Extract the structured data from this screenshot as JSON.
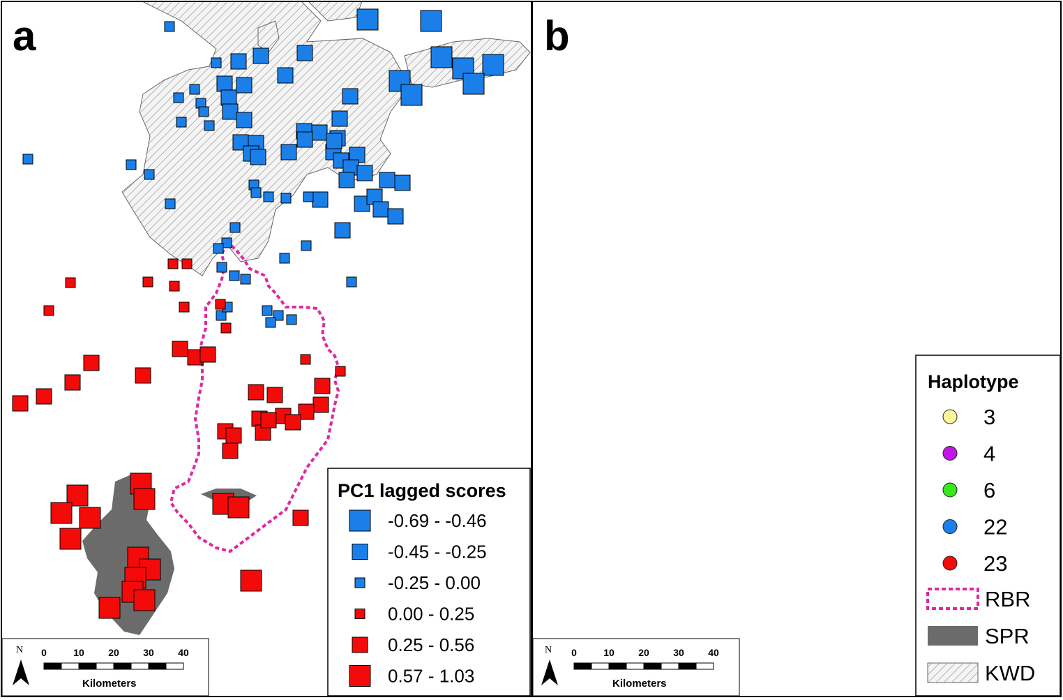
{
  "panels": {
    "a": {
      "letter": "a",
      "legend": {
        "title": "PC1 lagged scores",
        "classes": [
          {
            "label": "-0.69 - -0.46",
            "color": "#1a7fe8",
            "level": 6
          },
          {
            "label": "-0.45 - -0.25",
            "color": "#1a7fe8",
            "level": 5
          },
          {
            "label": "-0.25 - 0.00",
            "color": "#1a7fe8",
            "level": 4
          },
          {
            "label": "0.00 - 0.25",
            "color": "#f50a0a",
            "level": 4
          },
          {
            "label": "0.25 - 0.56",
            "color": "#f50a0a",
            "level": 5
          },
          {
            "label": "0.57 - 1.03",
            "color": "#f50a0a",
            "level": 6
          }
        ]
      }
    },
    "b": {
      "letter": "b",
      "legend": {
        "title": "Haplotype",
        "haplotypes": [
          {
            "label": "3",
            "color": "#fbf59a"
          },
          {
            "label": "4",
            "color": "#c214e6"
          },
          {
            "label": "6",
            "color": "#38e81c"
          },
          {
            "label": "22",
            "color": "#1a7fe8"
          },
          {
            "label": "23",
            "color": "#f50a0a"
          }
        ],
        "areas": [
          {
            "label": "RBR",
            "style": "dashed-magenta"
          },
          {
            "label": "SPR",
            "style": "solid-gray"
          },
          {
            "label": "KWD",
            "style": "hatched"
          }
        ]
      }
    }
  },
  "scale_bar": {
    "ticks": [
      "0",
      "10",
      "20",
      "30",
      "40"
    ],
    "unit": "Kilometers",
    "north": "N"
  },
  "colors": {
    "blue": "#1a7fe8",
    "red": "#f50a0a",
    "rbr_border": "#e0289e",
    "spr_fill": "#6b6b6b"
  }
}
